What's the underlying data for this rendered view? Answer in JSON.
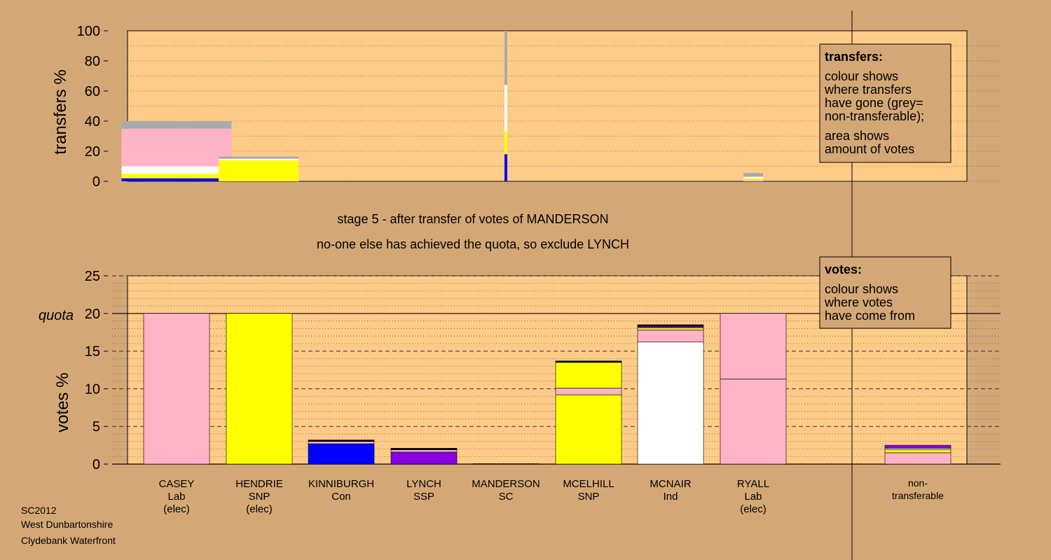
{
  "colors": {
    "page_bg": "#d4a876",
    "plot_bg": "#ffcc88",
    "Lab": "#ffb3c6",
    "SNP": "#ffff00",
    "Con": "#0000ff",
    "SSP": "#8800dd",
    "SC": "#000000",
    "Ind": "#ffffff",
    "nontransferable": "#aaaaaa"
  },
  "headline": {
    "line1": "stage 5 - after transfer of votes of MANDERSON",
    "line2": "no-one else has achieved the quota, so exclude LYNCH"
  },
  "footer": {
    "line1": "SC2012",
    "line2": "West Dunbartonshire",
    "line3": "Clydebank Waterfront"
  },
  "legend_transfers": {
    "title": "transfers:",
    "lines": [
      "colour shows",
      "where transfers",
      "have gone (grey=",
      "non-transferable);",
      "area shows",
      "amount of votes"
    ]
  },
  "legend_votes": {
    "title": "votes:",
    "lines": [
      "colour shows",
      "where votes",
      "have come from"
    ]
  },
  "candidates": [
    {
      "name": "CASEY",
      "party": "Lab",
      "note": "(elec)"
    },
    {
      "name": "HENDRIE",
      "party": "SNP",
      "note": "(elec)"
    },
    {
      "name": "KINNIBURGH",
      "party": "Con",
      "note": ""
    },
    {
      "name": "LYNCH",
      "party": "SSP",
      "note": ""
    },
    {
      "name": "MANDERSON",
      "party": "SC",
      "note": ""
    },
    {
      "name": "MCELHILL",
      "party": "SNP",
      "note": ""
    },
    {
      "name": "MCNAIR",
      "party": "Ind",
      "note": ""
    },
    {
      "name": "RYALL",
      "party": "Lab",
      "note": "(elec)"
    },
    {
      "name": "non-",
      "party": "transferable",
      "note": ""
    }
  ],
  "chart_data": [
    {
      "type": "bar",
      "ylabel": "transfers %",
      "ylim": [
        0,
        100
      ],
      "yticks": [
        0,
        20,
        40,
        60,
        80,
        100
      ],
      "transfer_columns": [
        {
          "source": "CASEY",
          "share_of_width": 0.72,
          "segments": [
            {
              "party": "Con",
              "value": 2
            },
            {
              "party": "SNP",
              "value": 3
            },
            {
              "party": "Ind",
              "value": 5
            },
            {
              "party": "Lab",
              "value": 25
            },
            {
              "party": "nontransferable",
              "value": 5
            }
          ]
        },
        {
          "source": "HENDRIE",
          "share_of_width": 0.48,
          "segments": [
            {
              "party": "SNP",
              "value": 14
            },
            {
              "party": "Ind",
              "value": 1
            },
            {
              "party": "nontransferable",
              "value": 1.5
            }
          ]
        },
        {
          "source": "MANDERSON",
          "share_of_width": 0.02,
          "segments": [
            {
              "party": "Con",
              "value": 18
            },
            {
              "party": "SNP",
              "value": 15
            },
            {
              "party": "Ind",
              "value": 31
            },
            {
              "party": "nontransferable",
              "value": 36
            }
          ]
        },
        {
          "source": "RYALL",
          "share_of_width": 0.24,
          "segments": [
            {
              "party": "Lab",
              "value": 1
            },
            {
              "party": "SNP",
              "value": 1
            },
            {
              "party": "Ind",
              "value": 1
            },
            {
              "party": "nontransferable",
              "value": 2.5
            }
          ]
        }
      ]
    },
    {
      "type": "bar",
      "ylabel": "votes %",
      "ylim": [
        0,
        25
      ],
      "yticks": [
        0,
        5,
        10,
        15,
        20,
        25
      ],
      "quota": 20,
      "quota_label": "quota",
      "categories": [
        "CASEY",
        "HENDRIE",
        "KINNIBURGH",
        "LYNCH",
        "MANDERSON",
        "MCELHILL",
        "MCNAIR",
        "RYALL",
        "non-transferable"
      ],
      "stacks": [
        [
          {
            "party": "Lab",
            "value": 20
          }
        ],
        [
          {
            "party": "SNP",
            "value": 20
          }
        ],
        [
          {
            "party": "Con",
            "value": 2.7
          },
          {
            "party": "Lab",
            "value": 0.3
          },
          {
            "party": "SC",
            "value": 0.2
          }
        ],
        [
          {
            "party": "SSP",
            "value": 1.6
          },
          {
            "party": "Lab",
            "value": 0.3
          },
          {
            "party": "SC",
            "value": 0.2
          }
        ],
        [
          {
            "party": "SC",
            "value": 0.05
          }
        ],
        [
          {
            "party": "SNP",
            "value": 9.2
          },
          {
            "party": "Lab",
            "value": 0.9
          },
          {
            "party": "SNP",
            "value": 3.4
          },
          {
            "party": "SC",
            "value": 0.2
          }
        ],
        [
          {
            "party": "Ind",
            "value": 16.2
          },
          {
            "party": "Lab",
            "value": 1.6
          },
          {
            "party": "SNP",
            "value": 0.3
          },
          {
            "party": "SSP",
            "value": 0.2
          },
          {
            "party": "SC",
            "value": 0.2
          }
        ],
        [
          {
            "party": "Lab",
            "value": 11.3
          },
          {
            "party": "Lab",
            "value": 8.7
          }
        ],
        [
          {
            "party": "Lab",
            "value": 1.5
          },
          {
            "party": "SNP",
            "value": 0.4
          },
          {
            "party": "Ind",
            "value": 0.2
          },
          {
            "party": "SSP",
            "value": 0.4
          }
        ]
      ]
    }
  ]
}
